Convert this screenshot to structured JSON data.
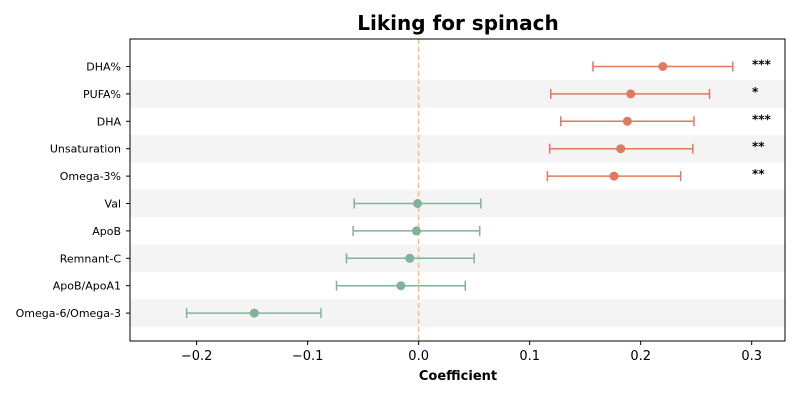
{
  "chart_data": {
    "type": "forest",
    "title": "Liking for spinach",
    "xlabel": "Coefficient",
    "xlim": [
      -0.26,
      0.33
    ],
    "xticks": [
      -0.2,
      -0.1,
      0.0,
      0.1,
      0.2,
      0.3
    ],
    "xtick_labels": [
      "−0.2",
      "−0.1",
      "0.0",
      "0.1",
      "0.2",
      "0.3"
    ],
    "reference_line": 0.0,
    "colors": {
      "positive": "#e07a5f",
      "null": "#81b29a",
      "reference_line": "#f2c078",
      "band": "#f4f4f4"
    },
    "rows": [
      {
        "label": "DHA%",
        "estimate": 0.22,
        "lower": 0.157,
        "upper": 0.283,
        "significance": "***",
        "group": "positive"
      },
      {
        "label": "PUFA%",
        "estimate": 0.191,
        "lower": 0.119,
        "upper": 0.262,
        "significance": "*",
        "group": "positive"
      },
      {
        "label": "DHA",
        "estimate": 0.188,
        "lower": 0.128,
        "upper": 0.248,
        "significance": "***",
        "group": "positive"
      },
      {
        "label": "Unsaturation",
        "estimate": 0.182,
        "lower": 0.118,
        "upper": 0.247,
        "significance": "**",
        "group": "positive"
      },
      {
        "label": "Omega-3%",
        "estimate": 0.176,
        "lower": 0.116,
        "upper": 0.236,
        "significance": "**",
        "group": "positive"
      },
      {
        "label": "Val",
        "estimate": -0.001,
        "lower": -0.058,
        "upper": 0.056,
        "significance": "",
        "group": "null"
      },
      {
        "label": "ApoB",
        "estimate": -0.002,
        "lower": -0.059,
        "upper": 0.055,
        "significance": "",
        "group": "null"
      },
      {
        "label": "Remnant-C",
        "estimate": -0.008,
        "lower": -0.065,
        "upper": 0.05,
        "significance": "",
        "group": "null"
      },
      {
        "label": "ApoB/ApoA1",
        "estimate": -0.016,
        "lower": -0.074,
        "upper": 0.042,
        "significance": "",
        "group": "null"
      },
      {
        "label": "Omega-6/Omega-3",
        "estimate": -0.148,
        "lower": -0.209,
        "upper": -0.088,
        "significance": "",
        "group": "null"
      }
    ]
  }
}
